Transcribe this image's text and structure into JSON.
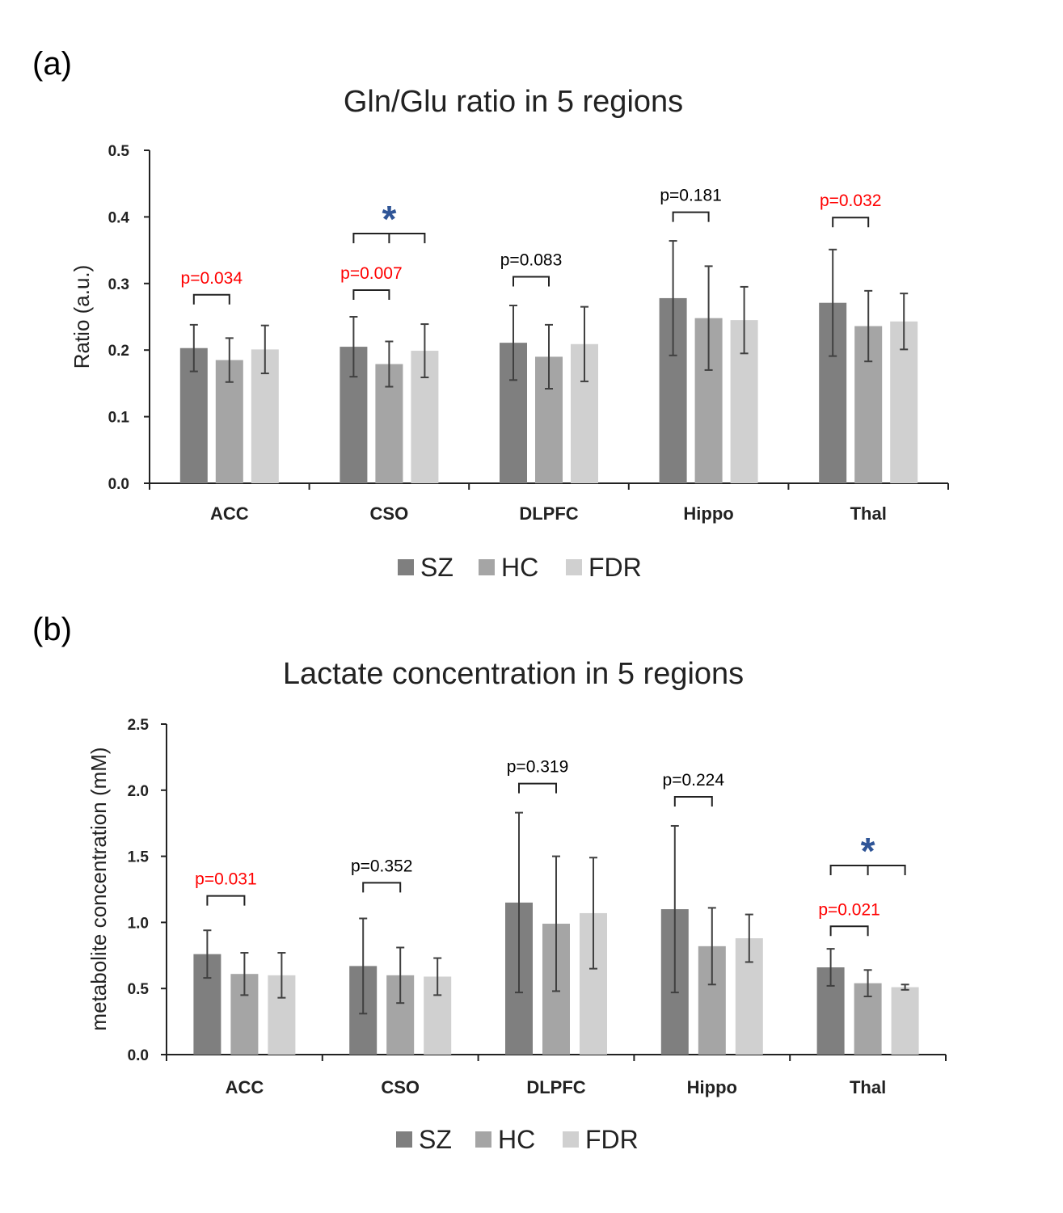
{
  "figure": {
    "panels": [
      {
        "label": "(a)",
        "chart_data": {
          "type": "bar",
          "title": "Gln/Glu ratio in 5 regions",
          "xlabel": "",
          "ylabel": "Ratio (a.u.)",
          "ylim": [
            0,
            0.5
          ],
          "ytick_values": [
            0,
            0.1,
            0.2,
            0.3,
            0.4,
            0.5
          ],
          "ytick_labels": [
            "0.0",
            "0.1",
            "0.2",
            "0.3",
            "0.4",
            "0.5"
          ],
          "categories": [
            "ACC",
            "CSO",
            "DLPFC",
            "Hippo",
            "Thal"
          ],
          "series": [
            {
              "name": "SZ",
              "color": "#7f7f7f",
              "values": [
                0.203,
                0.205,
                0.211,
                0.278,
                0.271
              ],
              "err": [
                0.035,
                0.045,
                0.056,
                0.086,
                0.08
              ]
            },
            {
              "name": "HC",
              "color": "#a5a5a5",
              "values": [
                0.185,
                0.179,
                0.19,
                0.248,
                0.236
              ],
              "err": [
                0.033,
                0.034,
                0.048,
                0.078,
                0.053
              ]
            },
            {
              "name": "FDR",
              "color": "#d0d0d0",
              "values": [
                0.201,
                0.199,
                0.209,
                0.245,
                0.243
              ],
              "err": [
                0.036,
                0.04,
                0.056,
                0.05,
                0.042
              ]
            }
          ],
          "annotations": [
            {
              "category": 0,
              "pair": "SZ-HC",
              "text": "p=0.034",
              "color": "#ff0000",
              "bracket_value": 0.283
            },
            {
              "category": 1,
              "pair": "SZ-HC",
              "text": "p=0.007",
              "color": "#ff0000",
              "bracket_value": 0.29
            },
            {
              "category": 1,
              "pair": "SZ-HC-FDR",
              "text": "*",
              "color": "#2f5597",
              "bracket_value": 0.375
            },
            {
              "category": 2,
              "pair": "SZ-HC",
              "text": "p=0.083",
              "color": "#000000",
              "bracket_value": 0.31
            },
            {
              "category": 3,
              "pair": "SZ-HC",
              "text": "p=0.181",
              "color": "#000000",
              "bracket_value": 0.407
            },
            {
              "category": 4,
              "pair": "SZ-HC",
              "text": "p=0.032",
              "color": "#ff0000",
              "bracket_value": 0.399
            }
          ],
          "legend": "bottom"
        }
      },
      {
        "label": "(b)",
        "chart_data": {
          "type": "bar",
          "title": "Lactate concentration in 5 regions",
          "xlabel": "",
          "ylabel": "metabolite concentration (mM)",
          "ylim": [
            0,
            2.5
          ],
          "ytick_values": [
            0,
            0.5,
            1.0,
            1.5,
            2.0,
            2.5
          ],
          "ytick_labels": [
            "0.0",
            "0.5",
            "1.0",
            "1.5",
            "2.0",
            "2.5"
          ],
          "categories": [
            "ACC",
            "CSO",
            "DLPFC",
            "Hippo",
            "Thal"
          ],
          "series": [
            {
              "name": "SZ",
              "color": "#7f7f7f",
              "values": [
                0.76,
                0.67,
                1.15,
                1.1,
                0.66
              ],
              "err": [
                0.18,
                0.36,
                0.68,
                0.63,
                0.14
              ]
            },
            {
              "name": "HC",
              "color": "#a5a5a5",
              "values": [
                0.61,
                0.6,
                0.99,
                0.82,
                0.54
              ],
              "err": [
                0.16,
                0.21,
                0.51,
                0.29,
                0.1
              ]
            },
            {
              "name": "FDR",
              "color": "#d0d0d0",
              "values": [
                0.6,
                0.59,
                1.07,
                0.88,
                0.51
              ],
              "err": [
                0.17,
                0.14,
                0.42,
                0.18,
                0.02
              ]
            }
          ],
          "annotations": [
            {
              "category": 0,
              "pair": "SZ-HC",
              "text": "p=0.031",
              "color": "#ff0000",
              "bracket_value": 1.2
            },
            {
              "category": 1,
              "pair": "SZ-HC",
              "text": "p=0.352",
              "color": "#000000",
              "bracket_value": 1.3
            },
            {
              "category": 2,
              "pair": "SZ-HC",
              "text": "p=0.319",
              "color": "#000000",
              "bracket_value": 2.05
            },
            {
              "category": 3,
              "pair": "SZ-HC",
              "text": "p=0.224",
              "color": "#000000",
              "bracket_value": 1.95
            },
            {
              "category": 4,
              "pair": "SZ-HC",
              "text": "p=0.021",
              "color": "#ff0000",
              "bracket_value": 0.97
            },
            {
              "category": 4,
              "pair": "SZ-HC-FDR",
              "text": "*",
              "color": "#2f5597",
              "bracket_value": 1.43
            }
          ],
          "legend": "bottom"
        }
      }
    ]
  }
}
